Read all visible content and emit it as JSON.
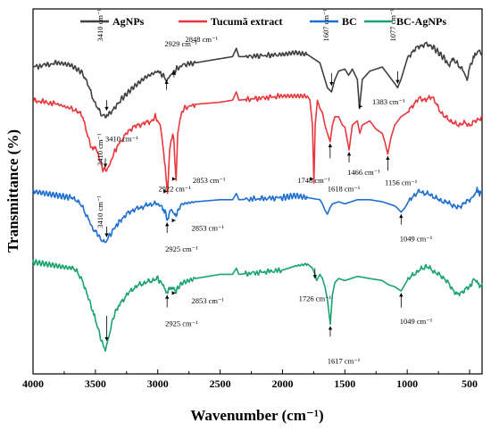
{
  "chart_data": {
    "type": "line",
    "xlabel": "Wavenumber (cm⁻¹)",
    "ylabel": "Transmittance (%)",
    "xlim": [
      4000,
      400
    ],
    "x_inverted": true,
    "xticks": [
      4000,
      3500,
      3000,
      2500,
      2000,
      1500,
      1000,
      500
    ],
    "yticks_shown": false,
    "legend_position": "top",
    "series": [
      {
        "name": "AgNPs",
        "color": "#404040",
        "points": [
          [
            4000,
            74
          ],
          [
            3800,
            75
          ],
          [
            3700,
            74.5
          ],
          [
            3600,
            72.5
          ],
          [
            3550,
            69
          ],
          [
            3500,
            65
          ],
          [
            3450,
            62.5
          ],
          [
            3420,
            62
          ],
          [
            3380,
            63
          ],
          [
            3300,
            66
          ],
          [
            3200,
            69
          ],
          [
            3100,
            71.5
          ],
          [
            3000,
            73
          ],
          [
            2960,
            72
          ],
          [
            2929,
            70.5
          ],
          [
            2900,
            72
          ],
          [
            2848,
            73.5
          ],
          [
            2800,
            74.5
          ],
          [
            2500,
            76
          ],
          [
            2400,
            76.5
          ],
          [
            2370,
            78.5
          ],
          [
            2350,
            76.5
          ],
          [
            2300,
            76.5
          ],
          [
            2000,
            77
          ],
          [
            1900,
            77.5
          ],
          [
            1800,
            77
          ],
          [
            1700,
            75
          ],
          [
            1660,
            71
          ],
          [
            1640,
            69
          ],
          [
            1607,
            68
          ],
          [
            1580,
            71
          ],
          [
            1550,
            73
          ],
          [
            1500,
            73.5
          ],
          [
            1470,
            72
          ],
          [
            1440,
            73.5
          ],
          [
            1400,
            71
          ],
          [
            1383,
            64
          ],
          [
            1360,
            71
          ],
          [
            1300,
            73
          ],
          [
            1200,
            74
          ],
          [
            1150,
            72
          ],
          [
            1100,
            70
          ],
          [
            1077,
            69
          ],
          [
            1050,
            71
          ],
          [
            1000,
            76
          ],
          [
            950,
            78
          ],
          [
            900,
            79
          ],
          [
            850,
            79.5
          ],
          [
            800,
            79
          ],
          [
            700,
            76
          ],
          [
            660,
            74
          ],
          [
            640,
            76
          ],
          [
            600,
            75
          ],
          [
            550,
            73
          ],
          [
            520,
            71
          ],
          [
            500,
            74
          ],
          [
            470,
            76
          ],
          [
            450,
            77
          ],
          [
            420,
            78
          ],
          [
            400,
            77
          ]
        ],
        "annotations": [
          {
            "text": "3410 cm⁻¹",
            "x": 3410,
            "vertical": true
          },
          {
            "text": "2929 cm⁻¹",
            "x": 2929
          },
          {
            "text": "2848 cm⁻¹",
            "x": 2848
          },
          {
            "text": "1607 cm⁻¹",
            "x": 1607,
            "vertical": true
          },
          {
            "text": "1383 cm⁻¹",
            "x": 1383
          },
          {
            "text": "1077 cm⁻¹",
            "x": 1077,
            "vertical": true
          }
        ]
      },
      {
        "name": "Tucumã extract",
        "color": "#e8383d",
        "points": [
          [
            4000,
            66
          ],
          [
            3800,
            65
          ],
          [
            3700,
            64
          ],
          [
            3650,
            63.5
          ],
          [
            3600,
            62
          ],
          [
            3550,
            56
          ],
          [
            3520,
            54
          ],
          [
            3500,
            55
          ],
          [
            3470,
            52
          ],
          [
            3440,
            49.5
          ],
          [
            3410,
            49
          ],
          [
            3380,
            51
          ],
          [
            3340,
            54
          ],
          [
            3300,
            56
          ],
          [
            3250,
            58
          ],
          [
            3200,
            59.5
          ],
          [
            3150,
            60
          ],
          [
            3100,
            60.5
          ],
          [
            3050,
            61
          ],
          [
            3020,
            62
          ],
          [
            2980,
            60
          ],
          [
            2960,
            55
          ],
          [
            2940,
            50
          ],
          [
            2922,
            43
          ],
          [
            2905,
            54
          ],
          [
            2880,
            58
          ],
          [
            2870,
            56
          ],
          [
            2853,
            46
          ],
          [
            2840,
            58
          ],
          [
            2820,
            62
          ],
          [
            2790,
            64
          ],
          [
            2700,
            65
          ],
          [
            2500,
            65.5
          ],
          [
            2400,
            66
          ],
          [
            2370,
            68
          ],
          [
            2350,
            66
          ],
          [
            2000,
            67
          ],
          [
            1900,
            67
          ],
          [
            1800,
            67
          ],
          [
            1780,
            66
          ],
          [
            1760,
            60
          ],
          [
            1748,
            46
          ],
          [
            1738,
            60
          ],
          [
            1720,
            66
          ],
          [
            1700,
            64
          ],
          [
            1680,
            63
          ],
          [
            1660,
            60
          ],
          [
            1640,
            58
          ],
          [
            1618,
            56
          ],
          [
            1600,
            60
          ],
          [
            1580,
            62
          ],
          [
            1550,
            62
          ],
          [
            1520,
            60
          ],
          [
            1500,
            59.5
          ],
          [
            1466,
            54
          ],
          [
            1440,
            60
          ],
          [
            1400,
            61
          ],
          [
            1380,
            58
          ],
          [
            1360,
            60
          ],
          [
            1300,
            61
          ],
          [
            1250,
            59
          ],
          [
            1200,
            58
          ],
          [
            1180,
            56
          ],
          [
            1156,
            53
          ],
          [
            1130,
            57
          ],
          [
            1100,
            60
          ],
          [
            1050,
            62
          ],
          [
            1000,
            63
          ],
          [
            950,
            65
          ],
          [
            900,
            66.5
          ],
          [
            850,
            66
          ],
          [
            800,
            67
          ],
          [
            750,
            64
          ],
          [
            700,
            62
          ],
          [
            650,
            61
          ],
          [
            600,
            60
          ],
          [
            550,
            60.5
          ],
          [
            500,
            60
          ],
          [
            450,
            61
          ],
          [
            400,
            62
          ]
        ],
        "annotations": [
          {
            "text": "3410 cm⁻¹",
            "x": 3410
          },
          {
            "text": "2922 cm⁻¹",
            "x": 2922
          },
          {
            "text": "2853 cm⁻¹",
            "x": 2853
          },
          {
            "text": "1748 cm⁻¹",
            "x": 1748
          },
          {
            "text": "1618 cm⁻¹",
            "x": 1618
          },
          {
            "text": "1466 cm⁻¹",
            "x": 1466
          },
          {
            "text": "1156 cm⁻¹",
            "x": 1156
          }
        ]
      },
      {
        "name": "BC",
        "color": "#1f6fd0",
        "points": [
          [
            4000,
            44
          ],
          [
            3900,
            43.5
          ],
          [
            3800,
            43
          ],
          [
            3700,
            42.5
          ],
          [
            3650,
            42
          ],
          [
            3600,
            40
          ],
          [
            3550,
            37
          ],
          [
            3520,
            35
          ],
          [
            3500,
            34.5
          ],
          [
            3470,
            33
          ],
          [
            3440,
            32
          ],
          [
            3420,
            31.5
          ],
          [
            3400,
            33
          ],
          [
            3370,
            34
          ],
          [
            3340,
            35.5
          ],
          [
            3300,
            37
          ],
          [
            3250,
            38.5
          ],
          [
            3200,
            39.5
          ],
          [
            3150,
            40
          ],
          [
            3100,
            40.5
          ],
          [
            3050,
            41
          ],
          [
            3000,
            41
          ],
          [
            2960,
            40
          ],
          [
            2940,
            39
          ],
          [
            2925,
            37
          ],
          [
            2910,
            38.5
          ],
          [
            2890,
            39.5
          ],
          [
            2870,
            39
          ],
          [
            2853,
            38
          ],
          [
            2830,
            40
          ],
          [
            2800,
            41
          ],
          [
            2700,
            41.5
          ],
          [
            2500,
            42
          ],
          [
            2400,
            42
          ],
          [
            2370,
            43.5
          ],
          [
            2350,
            42
          ],
          [
            2000,
            42.5
          ],
          [
            1900,
            43
          ],
          [
            1800,
            42.5
          ],
          [
            1700,
            42
          ],
          [
            1680,
            41
          ],
          [
            1660,
            39.5
          ],
          [
            1640,
            38.5
          ],
          [
            1620,
            40
          ],
          [
            1600,
            41
          ],
          [
            1550,
            41.5
          ],
          [
            1500,
            41
          ],
          [
            1450,
            41.5
          ],
          [
            1400,
            42
          ],
          [
            1300,
            42
          ],
          [
            1200,
            41.5
          ],
          [
            1150,
            41
          ],
          [
            1100,
            40.5
          ],
          [
            1080,
            40
          ],
          [
            1049,
            39
          ],
          [
            1020,
            40
          ],
          [
            1000,
            41
          ],
          [
            950,
            43
          ],
          [
            900,
            44
          ],
          [
            850,
            43.5
          ],
          [
            800,
            43
          ],
          [
            750,
            42
          ],
          [
            700,
            41.5
          ],
          [
            650,
            41
          ],
          [
            600,
            40
          ],
          [
            550,
            41
          ],
          [
            500,
            42
          ],
          [
            460,
            43
          ],
          [
            440,
            45
          ],
          [
            420,
            43
          ],
          [
            400,
            44
          ]
        ],
        "annotations": [
          {
            "text": "3410 cm⁻¹",
            "x": 3410,
            "vertical": true
          },
          {
            "text": "2925 cm⁻¹",
            "x": 2925
          },
          {
            "text": "2853 cm⁻¹",
            "x": 2853
          },
          {
            "text": "1049 cm⁻¹",
            "x": 1049
          }
        ]
      },
      {
        "name": "BC-AgNPs",
        "color": "#1aa36e",
        "points": [
          [
            4000,
            27
          ],
          [
            3900,
            26.5
          ],
          [
            3800,
            26
          ],
          [
            3700,
            25.5
          ],
          [
            3650,
            25
          ],
          [
            3600,
            22
          ],
          [
            3550,
            18
          ],
          [
            3520,
            15
          ],
          [
            3500,
            13
          ],
          [
            3470,
            10
          ],
          [
            3440,
            7
          ],
          [
            3420,
            6
          ],
          [
            3400,
            8
          ],
          [
            3370,
            12
          ],
          [
            3340,
            15
          ],
          [
            3300,
            17
          ],
          [
            3250,
            19
          ],
          [
            3200,
            20.5
          ],
          [
            3150,
            21.5
          ],
          [
            3100,
            22
          ],
          [
            3050,
            22.5
          ],
          [
            3000,
            23
          ],
          [
            2960,
            21.5
          ],
          [
            2940,
            20
          ],
          [
            2925,
            19.5
          ],
          [
            2910,
            20.5
          ],
          [
            2890,
            21
          ],
          [
            2870,
            20.5
          ],
          [
            2853,
            20
          ],
          [
            2830,
            21
          ],
          [
            2800,
            22
          ],
          [
            2700,
            23
          ],
          [
            2500,
            24
          ],
          [
            2400,
            24
          ],
          [
            2370,
            25.5
          ],
          [
            2350,
            24
          ],
          [
            2000,
            25
          ],
          [
            1900,
            26
          ],
          [
            1800,
            26.5
          ],
          [
            1760,
            25.5
          ],
          [
            1740,
            24
          ],
          [
            1726,
            22.5
          ],
          [
            1700,
            24
          ],
          [
            1680,
            23
          ],
          [
            1660,
            21
          ],
          [
            1640,
            18
          ],
          [
            1617,
            12
          ],
          [
            1600,
            19
          ],
          [
            1580,
            22
          ],
          [
            1550,
            23
          ],
          [
            1500,
            22.5
          ],
          [
            1450,
            23
          ],
          [
            1400,
            23.5
          ],
          [
            1300,
            23
          ],
          [
            1200,
            22.5
          ],
          [
            1150,
            21.5
          ],
          [
            1100,
            21
          ],
          [
            1049,
            20
          ],
          [
            1020,
            21.5
          ],
          [
            1000,
            22.5
          ],
          [
            950,
            24
          ],
          [
            900,
            25
          ],
          [
            850,
            26
          ],
          [
            800,
            25
          ],
          [
            750,
            24
          ],
          [
            700,
            23
          ],
          [
            650,
            21
          ],
          [
            600,
            19
          ],
          [
            550,
            20
          ],
          [
            500,
            21
          ],
          [
            460,
            23
          ],
          [
            440,
            22
          ],
          [
            420,
            21
          ],
          [
            400,
            22
          ]
        ],
        "annotations": [
          {
            "text": "3410 cm⁻¹",
            "x": 3410,
            "vertical": true
          },
          {
            "text": "2925 cm⁻¹",
            "x": 2925
          },
          {
            "text": "2853 cm⁻¹",
            "x": 2853
          },
          {
            "text": "1726 cm⁻¹",
            "x": 1726
          },
          {
            "text": "1617 cm⁻¹",
            "x": 1617
          },
          {
            "text": "1049 cm⁻¹",
            "x": 1049
          }
        ]
      }
    ]
  }
}
